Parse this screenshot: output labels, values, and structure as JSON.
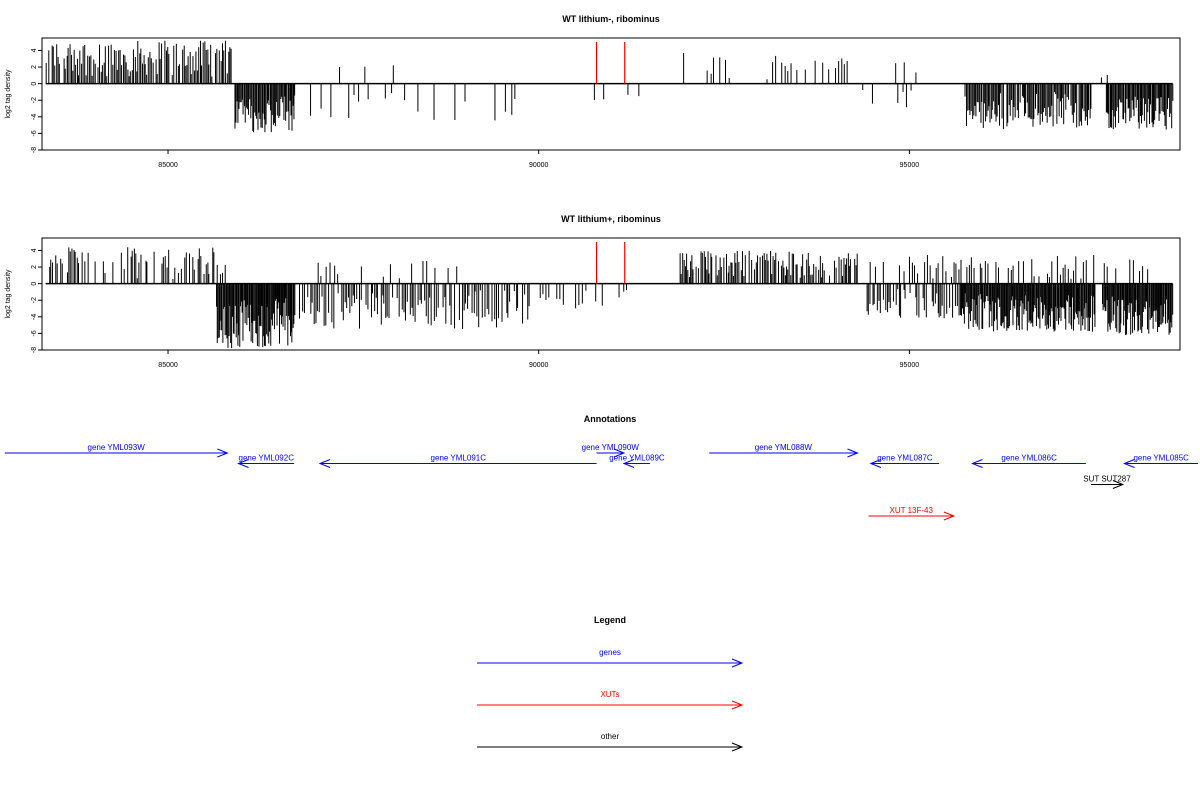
{
  "colors": {
    "gene": "#0000ff",
    "xut": "#ff0000",
    "other": "#000000",
    "marker": "#ff0000",
    "bars": "#000000"
  },
  "chart_data": [
    {
      "type": "bar",
      "title": "WT lithium-, ribominus",
      "ylabel": "log2 tag density",
      "xlim": [
        83300,
        98650
      ],
      "ylim": [
        -8,
        5.5
      ],
      "xticks": [
        85000,
        90000,
        95000
      ],
      "yticks": [
        4,
        2,
        0,
        -2,
        -4,
        -6,
        -8
      ],
      "grid": false,
      "markers_x": [
        90780,
        91160
      ],
      "segments": [
        {
          "start": 83350,
          "end": 85850,
          "step": 20,
          "min": 0.8,
          "max": 5.2,
          "fill": 0.85,
          "sign": 1
        },
        {
          "start": 85900,
          "end": 86700,
          "step": 14,
          "min": 1.5,
          "max": 6.0,
          "fill": 1.0,
          "sign": -1
        },
        {
          "start": 86650,
          "end": 89700,
          "step": 45,
          "min": 0.4,
          "max": 4.5,
          "fill": 0.35,
          "sign": -1
        },
        {
          "start": 87300,
          "end": 87900,
          "step": 300,
          "min": 1.0,
          "max": 3.0,
          "fill": 0.8,
          "sign": 1
        },
        {
          "start": 90700,
          "end": 91400,
          "step": 120,
          "min": 0.5,
          "max": 2.5,
          "fill": 0.5,
          "sign": -1
        },
        {
          "start": 91950,
          "end": 94200,
          "step": 40,
          "min": 0.5,
          "max": 3.9,
          "fill": 0.4,
          "sign": 1
        },
        {
          "start": 94300,
          "end": 95300,
          "step": 60,
          "min": 0.5,
          "max": 3.5,
          "fill": 0.4,
          "sign": -1
        },
        {
          "start": 94800,
          "end": 95200,
          "step": 120,
          "min": 1.0,
          "max": 3.0,
          "fill": 0.6,
          "sign": 1
        },
        {
          "start": 95750,
          "end": 97450,
          "step": 16,
          "min": 1.0,
          "max": 5.5,
          "fill": 0.95,
          "sign": -1
        },
        {
          "start": 97650,
          "end": 98550,
          "step": 14,
          "min": 1.5,
          "max": 5.6,
          "fill": 1.0,
          "sign": -1
        },
        {
          "start": 97550,
          "end": 97650,
          "step": 80,
          "min": 0.5,
          "max": 1.2,
          "fill": 1.0,
          "sign": 1
        }
      ]
    },
    {
      "type": "bar",
      "title": "WT lithium+, ribominus",
      "ylabel": "log2 tag density",
      "xlim": [
        83300,
        98650
      ],
      "ylim": [
        -8,
        5.5
      ],
      "xticks": [
        85000,
        90000,
        95000
      ],
      "yticks": [
        4,
        2,
        0,
        -2,
        -4,
        -6,
        -8
      ],
      "grid": false,
      "markers_x": [
        90780,
        91160
      ],
      "segments": [
        {
          "start": 83350,
          "end": 85800,
          "step": 22,
          "min": 0.5,
          "max": 4.4,
          "fill": 0.6,
          "sign": 1
        },
        {
          "start": 85650,
          "end": 86700,
          "step": 12,
          "min": 1.5,
          "max": 7.8,
          "fill": 1.0,
          "sign": -1
        },
        {
          "start": 86700,
          "end": 89900,
          "step": 22,
          "min": 0.8,
          "max": 5.5,
          "fill": 0.75,
          "sign": -1
        },
        {
          "start": 87000,
          "end": 88900,
          "step": 55,
          "min": 0.5,
          "max": 2.8,
          "fill": 0.45,
          "sign": 1
        },
        {
          "start": 90000,
          "end": 91200,
          "step": 45,
          "min": 0.5,
          "max": 3.0,
          "fill": 0.5,
          "sign": -1
        },
        {
          "start": 91900,
          "end": 94300,
          "step": 18,
          "min": 0.5,
          "max": 4.0,
          "fill": 0.85,
          "sign": 1
        },
        {
          "start": 94400,
          "end": 95700,
          "step": 20,
          "min": 0.5,
          "max": 4.2,
          "fill": 0.7,
          "sign": -1
        },
        {
          "start": 94400,
          "end": 97500,
          "step": 35,
          "min": 0.5,
          "max": 3.5,
          "fill": 0.6,
          "sign": 1
        },
        {
          "start": 95700,
          "end": 97500,
          "step": 12,
          "min": 1.0,
          "max": 5.8,
          "fill": 1.0,
          "sign": -1
        },
        {
          "start": 97600,
          "end": 98550,
          "step": 12,
          "min": 1.5,
          "max": 6.3,
          "fill": 1.0,
          "sign": -1
        },
        {
          "start": 97600,
          "end": 98200,
          "step": 60,
          "min": 0.5,
          "max": 3.0,
          "fill": 0.6,
          "sign": 1
        }
      ]
    }
  ],
  "annotations": {
    "title": "Annotations",
    "features": [
      {
        "label": "gene YML093W",
        "start": 82800,
        "end": 85800,
        "row": 0,
        "strand": "+",
        "type": "gene"
      },
      {
        "label": "gene YML092C",
        "start": 85950,
        "end": 86700,
        "row": 1,
        "strand": "-",
        "type": "gene"
      },
      {
        "label": "gene YML091C",
        "start": 87050,
        "end": 90780,
        "row": 1,
        "strand": "-",
        "type": "gene"
      },
      {
        "label": "gene YML090W",
        "start": 90780,
        "end": 91150,
        "row": 0,
        "strand": "+",
        "type": "gene"
      },
      {
        "label": "gene YML089C",
        "start": 91150,
        "end": 91500,
        "row": 1,
        "strand": "-",
        "type": "gene"
      },
      {
        "label": "gene YML088W",
        "start": 92300,
        "end": 94300,
        "row": 0,
        "strand": "+",
        "type": "gene"
      },
      {
        "label": "gene YML087C",
        "start": 94480,
        "end": 95400,
        "row": 1,
        "strand": "-",
        "type": "gene"
      },
      {
        "label": "gene YML086C",
        "start": 95850,
        "end": 97380,
        "row": 1,
        "strand": "-",
        "type": "gene"
      },
      {
        "label": "gene YML085C",
        "start": 97900,
        "end": 99000,
        "row": 1,
        "strand": "-",
        "type": "gene"
      },
      {
        "label": "SUT SUT287",
        "start": 97450,
        "end": 97880,
        "row": 3,
        "strand": "+",
        "type": "other"
      },
      {
        "label": "XUT 13F-43",
        "start": 94450,
        "end": 95600,
        "row": 6,
        "strand": "+",
        "type": "xut"
      }
    ]
  },
  "legend": {
    "title": "Legend",
    "items": [
      {
        "label": "genes",
        "type": "gene"
      },
      {
        "label": "XUTs",
        "type": "xut"
      },
      {
        "label": "other",
        "type": "other"
      }
    ]
  }
}
